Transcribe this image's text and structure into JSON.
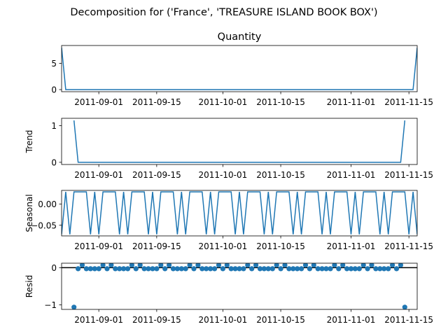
{
  "figure": {
    "suptitle": "Decomposition for ('France', 'TREASURE ISLAND BOOK BOX')"
  },
  "colors": {
    "line": "#1f77b4",
    "marker": "#1f77b4",
    "axis": "#000000",
    "zero_line": "#000000"
  },
  "chart_data": [
    {
      "type": "line",
      "title": "Quantity",
      "ylabel": "",
      "xlim": [
        "2011-08-23",
        "2011-11-17"
      ],
      "ylim": [
        -0.4,
        8.4
      ],
      "yticks": [
        0,
        5
      ],
      "xticks": [
        "2011-09-01",
        "2011-09-15",
        "2011-10-01",
        "2011-10-15",
        "2011-11-01",
        "2011-11-15"
      ],
      "xticklabels": [
        "2011-09-01",
        "2011-09-15",
        "2011-10-01",
        "2011-10-15",
        "2011-11-01",
        "2011-11-15"
      ],
      "x": [
        "2011-08-23",
        "2011-08-24",
        "2011-11-16",
        "2011-11-17"
      ],
      "y": [
        8,
        0,
        0,
        8
      ]
    },
    {
      "type": "line",
      "title": "",
      "ylabel": "Trend",
      "xlim": [
        "2011-08-23",
        "2011-11-17"
      ],
      "ylim": [
        -0.06,
        1.2
      ],
      "yticks": [
        0,
        1
      ],
      "xticks": [
        "2011-09-01",
        "2011-09-15",
        "2011-10-01",
        "2011-10-15",
        "2011-11-01",
        "2011-11-15"
      ],
      "xticklabels": [
        "2011-09-01",
        "2011-09-15",
        "2011-10-01",
        "2011-10-15",
        "2011-11-01",
        "2011-11-15"
      ],
      "x": [
        "2011-08-26",
        "2011-08-27",
        "2011-11-13",
        "2011-11-14"
      ],
      "y": [
        1.14,
        0,
        0,
        1.14
      ]
    },
    {
      "type": "line",
      "title": "",
      "ylabel": "Seasonal",
      "xlim": [
        "2011-08-23",
        "2011-11-17"
      ],
      "ylim": [
        -0.075,
        0.032
      ],
      "yticks": [
        0,
        -0.05
      ],
      "yticklabels": [
        "0.00",
        "−0.05"
      ],
      "xticks": [
        "2011-09-01",
        "2011-09-15",
        "2011-10-01",
        "2011-10-15",
        "2011-11-01",
        "2011-11-15"
      ],
      "xticklabels": [
        "2011-09-01",
        "2011-09-15",
        "2011-10-01",
        "2011-10-15",
        "2011-11-01",
        "2011-11-15"
      ],
      "period": 7,
      "start": "2011-08-23",
      "pattern": [
        -0.0714,
        0.0286,
        -0.0714,
        0.0286,
        0.0286,
        0.0286,
        0.0286
      ]
    },
    {
      "type": "scatter",
      "title": "",
      "ylabel": "Resid",
      "xlim": [
        "2011-08-23",
        "2011-11-17"
      ],
      "ylim": [
        -1.12,
        0.12
      ],
      "yticks": [
        0,
        -1
      ],
      "yticklabels": [
        "0",
        "−1"
      ],
      "xticks": [
        "2011-09-01",
        "2011-09-15",
        "2011-10-01",
        "2011-10-15",
        "2011-11-01",
        "2011-11-15"
      ],
      "xticklabels": [
        "2011-09-01",
        "2011-09-15",
        "2011-10-01",
        "2011-10-15",
        "2011-11-01",
        "2011-11-15"
      ],
      "reference_line": 0,
      "x_range": [
        "2011-08-26",
        "2011-11-14"
      ],
      "values_by_weekday": [
        0.071,
        -0.029,
        0.071,
        -0.029,
        -0.029,
        -0.029,
        -0.029
      ],
      "outliers": [
        {
          "x": "2011-08-26",
          "y": -1.06
        },
        {
          "x": "2011-11-14",
          "y": -1.06
        }
      ]
    }
  ]
}
